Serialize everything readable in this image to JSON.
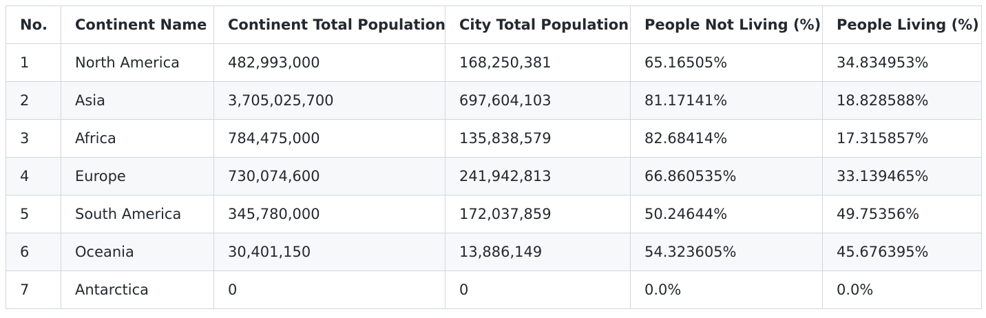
{
  "table": {
    "headers": [
      "No.",
      "Continent Name",
      "Continent Total Population",
      "City Total Population",
      "People Not Living (%)",
      "People Living (%)"
    ],
    "rows": [
      [
        "1",
        "North America",
        "482,993,000",
        "168,250,381",
        "65.16505%",
        "34.834953%"
      ],
      [
        "2",
        "Asia",
        "3,705,025,700",
        "697,604,103",
        "81.17141%",
        "18.828588%"
      ],
      [
        "3",
        "Africa",
        "784,475,000",
        "135,838,579",
        "82.68414%",
        "17.315857%"
      ],
      [
        "4",
        "Europe",
        "730,074,600",
        "241,942,813",
        "66.860535%",
        "33.139465%"
      ],
      [
        "5",
        "South America",
        "345,780,000",
        "172,037,859",
        "50.24644%",
        "49.75356%"
      ],
      [
        "6",
        "Oceania",
        "30,401,150",
        "13,886,149",
        "54.323605%",
        "45.676395%"
      ],
      [
        "7",
        "Antarctica",
        "0",
        "0",
        "0.0%",
        "0.0%"
      ]
    ]
  },
  "colors": {
    "border": "#d0d7de",
    "stripe": "#f6f8fa",
    "text": "#24292f"
  }
}
